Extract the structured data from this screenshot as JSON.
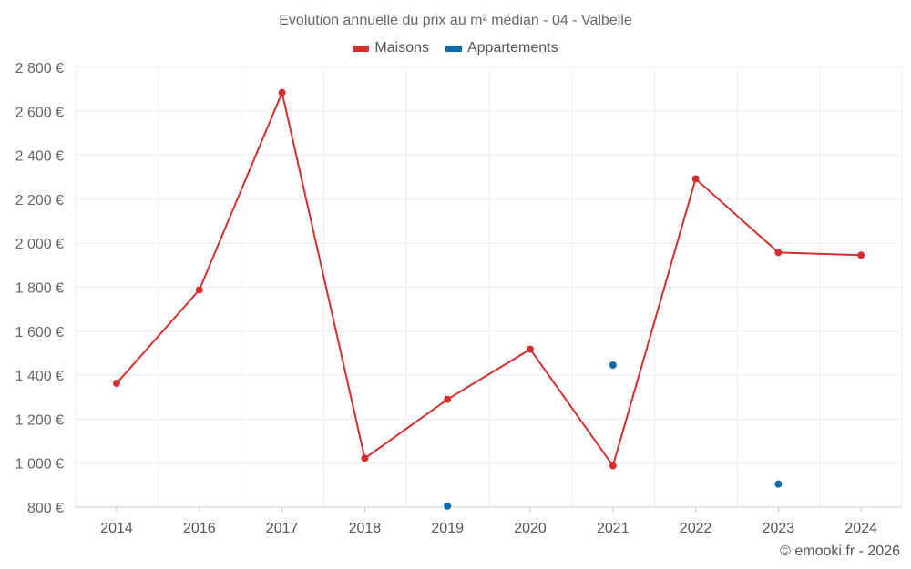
{
  "chart_data": {
    "type": "line",
    "title": "Evolution annuelle du prix au m² médian - 04 - Valbelle",
    "categories": [
      "2014",
      "2016",
      "2017",
      "2018",
      "2019",
      "2020",
      "2021",
      "2022",
      "2023",
      "2024"
    ],
    "y_tick_labels": [
      "800 €",
      "1 000 €",
      "1 200 €",
      "1 400 €",
      "1 600 €",
      "1 800 €",
      "2 000 €",
      "2 200 €",
      "2 400 €",
      "2 600 €",
      "2 800 €"
    ],
    "y_ticks": [
      800,
      1000,
      1200,
      1400,
      1600,
      1800,
      2000,
      2200,
      2400,
      2600,
      2800
    ],
    "ylim": [
      800,
      2800
    ],
    "grid": true,
    "legend_position": "top-center",
    "series": [
      {
        "name": "Maisons",
        "color": "#d32f2f",
        "values": [
          1363,
          1788,
          2685,
          1022,
          1290,
          1518,
          988,
          2293,
          1958,
          1946
        ]
      },
      {
        "name": "Appartements",
        "color": "#0d6aa8",
        "values": [
          null,
          null,
          null,
          null,
          805,
          null,
          1446,
          null,
          905,
          null
        ]
      }
    ]
  },
  "credit": "© emooki.fr - 2026"
}
